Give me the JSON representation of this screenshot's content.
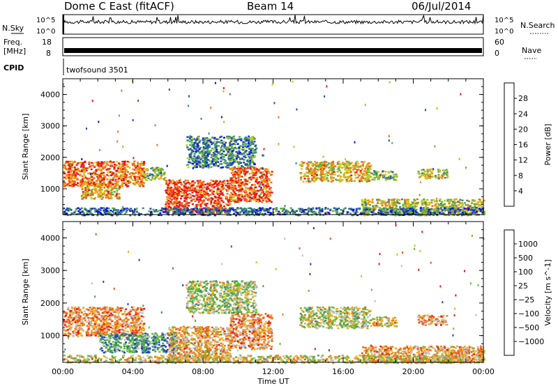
{
  "header": {
    "station": "Dome C East (fitACF)",
    "beam": "Beam 14",
    "date": "06/Jul/2014"
  },
  "status_panels": {
    "nsky_label": "N.Sky",
    "nsky_ticks": [
      "10^5",
      "10^0"
    ],
    "nsearch_label": "N.Search",
    "nsearch_ticks": [
      "10^5",
      "10^0"
    ],
    "freq_label": "Freq.",
    "freq_unit": "[MHz]",
    "freq_ticks": [
      "18",
      "8"
    ],
    "nave_label": "Nave",
    "nave_ticks": [
      "60",
      "0"
    ],
    "cpid_label": "CPID",
    "cpid_value": "twofsound 3501"
  },
  "chart_data": [
    {
      "type": "heatmap",
      "name": "power",
      "ylabel": "Slant Range [km]",
      "xlabel": "",
      "ylim": [
        180,
        4500
      ],
      "yticks": [
        "1000",
        "2000",
        "3000",
        "4000"
      ],
      "colorbar_label": "Power [dB]",
      "colorbar_ticks": [
        "4",
        "8",
        "12",
        "16",
        "20",
        "24",
        "28"
      ],
      "colorbar_range": [
        0,
        32
      ],
      "colors": [
        "#1010e0",
        "#2050b0",
        "#3a8a7a",
        "#60b040",
        "#c0d020",
        "#f0a010",
        "#f07018",
        "#e81818"
      ],
      "bands": [
        {
          "x0": 0.0,
          "x1": 4.6,
          "y0": 1100,
          "y1": 1900,
          "level": 0.82
        },
        {
          "x0": 1.0,
          "x1": 3.2,
          "y0": 700,
          "y1": 1200,
          "level": 0.7
        },
        {
          "x0": 4.6,
          "x1": 5.8,
          "y0": 1300,
          "y1": 1700,
          "level": 0.45
        },
        {
          "x0": 5.8,
          "x1": 9.5,
          "y0": 250,
          "y1": 1300,
          "level": 0.92
        },
        {
          "x0": 9.5,
          "x1": 11.9,
          "y0": 600,
          "y1": 1700,
          "level": 0.85
        },
        {
          "x0": 7.0,
          "x1": 11.0,
          "y0": 1700,
          "y1": 2700,
          "level": 0.3
        },
        {
          "x0": 13.5,
          "x1": 17.5,
          "y0": 1250,
          "y1": 1900,
          "level": 0.65
        },
        {
          "x0": 17.5,
          "x1": 19.0,
          "y0": 1300,
          "y1": 1600,
          "level": 0.45
        },
        {
          "x0": 20.2,
          "x1": 21.9,
          "y0": 1350,
          "y1": 1650,
          "level": 0.55
        },
        {
          "x0": 17.0,
          "x1": 24.0,
          "y0": 180,
          "y1": 700,
          "level": 0.55
        },
        {
          "x0": 0.0,
          "x1": 24.0,
          "y0": 180,
          "y1": 420,
          "level": 0.25
        }
      ]
    },
    {
      "type": "heatmap",
      "name": "velocity",
      "ylabel": "Slant Range [km]",
      "xlabel": "Time UT",
      "xticks": [
        "00:00",
        "04:00",
        "08:00",
        "12:00",
        "16:00",
        "20:00",
        "00:00"
      ],
      "xlim": [
        0,
        24
      ],
      "ylim": [
        180,
        4500
      ],
      "yticks": [
        "1000",
        "2000",
        "3000",
        "4000"
      ],
      "colorbar_label": "Velocity [m s^-1]",
      "colorbar_ticks": [
        "1000",
        "500",
        "100",
        "25",
        "−25",
        "−100",
        "−500",
        "−1000"
      ],
      "colors": [
        "#2040c0",
        "#3a8a7a",
        "#50a050",
        "#60c030",
        "#c0c0c0",
        "#f0b020",
        "#f08018",
        "#e85818",
        "#e81818"
      ],
      "bands": [
        {
          "x0": 0.0,
          "x1": 4.6,
          "y0": 1000,
          "y1": 1900,
          "level": 0.72
        },
        {
          "x0": 2.0,
          "x1": 6.5,
          "y0": 500,
          "y1": 1100,
          "level": 0.25
        },
        {
          "x0": 6.0,
          "x1": 9.5,
          "y0": 250,
          "y1": 1300,
          "level": 0.65
        },
        {
          "x0": 9.5,
          "x1": 11.9,
          "y0": 600,
          "y1": 1700,
          "level": 0.7
        },
        {
          "x0": 7.0,
          "x1": 11.0,
          "y0": 1700,
          "y1": 2700,
          "level": 0.45
        },
        {
          "x0": 13.5,
          "x1": 17.5,
          "y0": 1250,
          "y1": 1900,
          "level": 0.45
        },
        {
          "x0": 17.5,
          "x1": 19.0,
          "y0": 1300,
          "y1": 1600,
          "level": 0.6
        },
        {
          "x0": 20.2,
          "x1": 21.9,
          "y0": 1350,
          "y1": 1650,
          "level": 0.7
        },
        {
          "x0": 17.0,
          "x1": 24.0,
          "y0": 180,
          "y1": 700,
          "level": 0.68
        },
        {
          "x0": 0.0,
          "x1": 24.0,
          "y0": 180,
          "y1": 420,
          "level": 0.55
        }
      ]
    }
  ]
}
